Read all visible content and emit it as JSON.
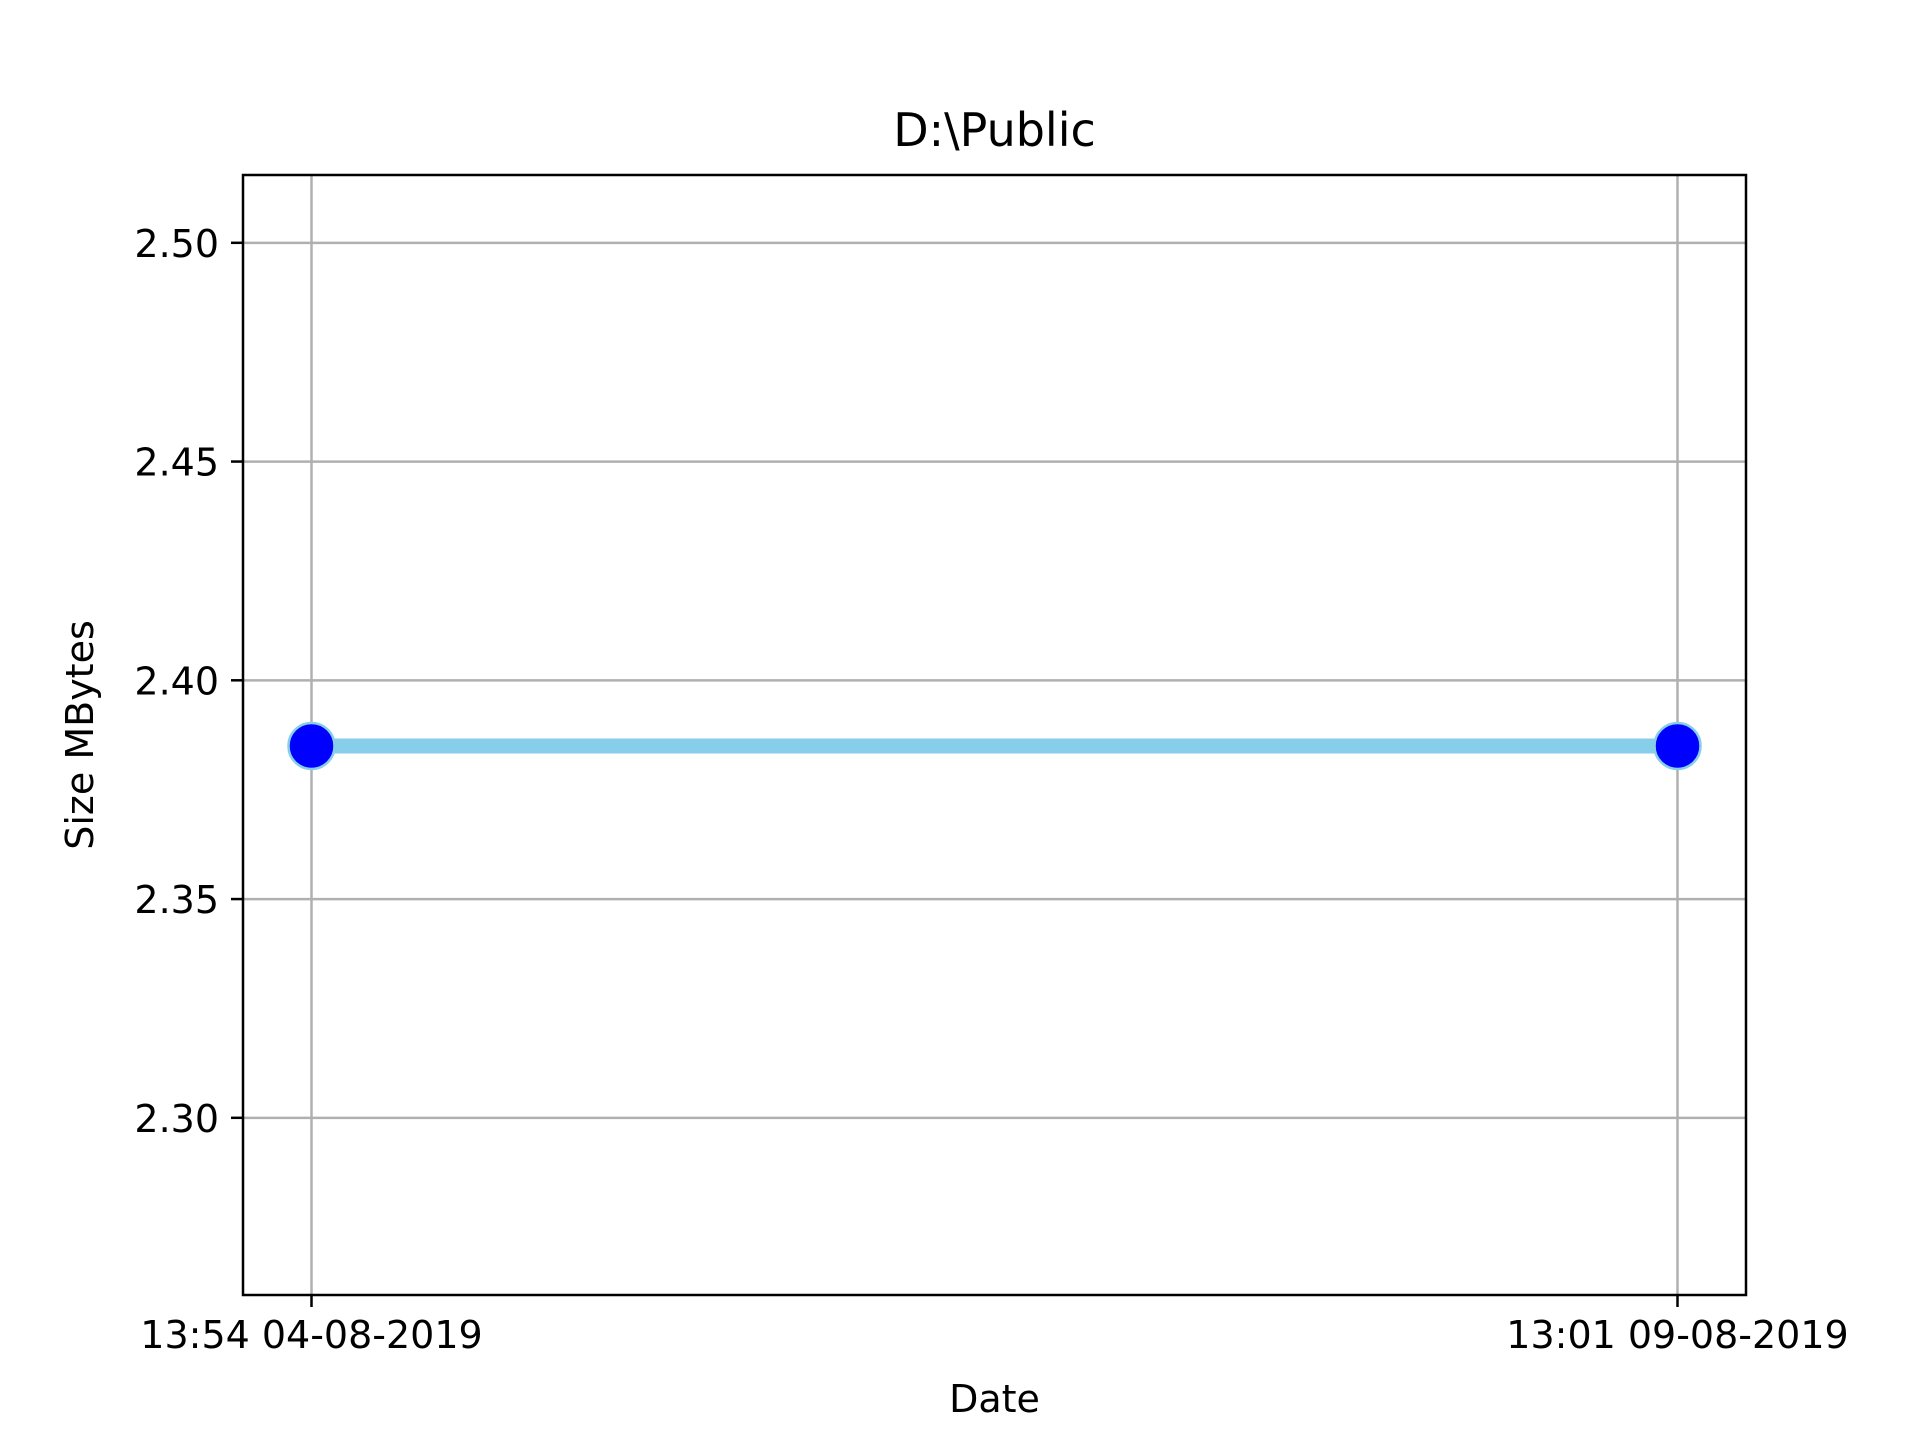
{
  "chart_data": {
    "type": "line",
    "title": "D:\\Public",
    "xlabel": "Date",
    "ylabel": "Size MBytes",
    "x": [
      "13:54 04-08-2019",
      "13:01 09-08-2019"
    ],
    "series": [
      {
        "values": [
          2.385,
          2.385
        ],
        "line_color": "#87CEEB",
        "marker_color": "#0000FF",
        "marker_edge_color": "#87CEEB"
      }
    ],
    "x_ticks": [
      "13:54 04-08-2019",
      "13:01 09-08-2019"
    ],
    "y_ticks": [
      2.3,
      2.35,
      2.4,
      2.45,
      2.5
    ],
    "y_tick_labels": [
      "2.30",
      "2.35",
      "2.40",
      "2.45",
      "2.50"
    ],
    "ylim": [
      2.2595,
      2.5155
    ],
    "grid": true,
    "grid_color": "#b0b0b0",
    "legend": false
  }
}
